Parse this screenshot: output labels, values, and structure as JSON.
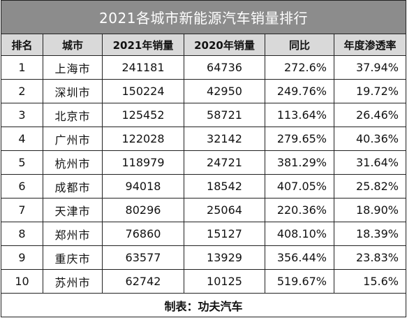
{
  "table": {
    "title": "2021各城市新能源汽车销量排行",
    "headers": {
      "rank": "排名",
      "city": "城市",
      "sales_2021": "2021年销量",
      "sales_2020": "2020年销量",
      "yoy": "同比",
      "penetration": "年度渗透率"
    },
    "rows": [
      {
        "rank": "1",
        "city": "上海市",
        "sales_2021": "241181",
        "sales_2020": "64736",
        "yoy": "272.6%",
        "penetration": "37.94%"
      },
      {
        "rank": "2",
        "city": "深圳市",
        "sales_2021": "150224",
        "sales_2020": "42950",
        "yoy": "249.76%",
        "penetration": "19.72%"
      },
      {
        "rank": "3",
        "city": "北京市",
        "sales_2021": "125452",
        "sales_2020": "58721",
        "yoy": "113.64%",
        "penetration": "26.46%"
      },
      {
        "rank": "4",
        "city": "广州市",
        "sales_2021": "122028",
        "sales_2020": "32142",
        "yoy": "279.65%",
        "penetration": "40.36%"
      },
      {
        "rank": "5",
        "city": "杭州市",
        "sales_2021": "118979",
        "sales_2020": "24721",
        "yoy": "381.29%",
        "penetration": "31.64%"
      },
      {
        "rank": "6",
        "city": "成都市",
        "sales_2021": "94018",
        "sales_2020": "18542",
        "yoy": "407.05%",
        "penetration": "25.82%"
      },
      {
        "rank": "7",
        "city": "天津市",
        "sales_2021": "80296",
        "sales_2020": "25064",
        "yoy": "220.36%",
        "penetration": "18.90%"
      },
      {
        "rank": "8",
        "city": "郑州市",
        "sales_2021": "76860",
        "sales_2020": "15127",
        "yoy": "408.10%",
        "penetration": "18.39%"
      },
      {
        "rank": "9",
        "city": "重庆市",
        "sales_2021": "63577",
        "sales_2020": "13929",
        "yoy": "356.44%",
        "penetration": "23.83%"
      },
      {
        "rank": "10",
        "city": "苏州市",
        "sales_2021": "62742",
        "sales_2020": "10125",
        "yoy": "519.67%",
        "penetration": "15.6%"
      }
    ],
    "footer": "制表：功夫汽车"
  },
  "colors": {
    "title_background": "#8c8c8c",
    "title_text": "#ffffff",
    "header_background": "#d9d9d9",
    "border": "#222222",
    "cell_text": "#111111"
  }
}
